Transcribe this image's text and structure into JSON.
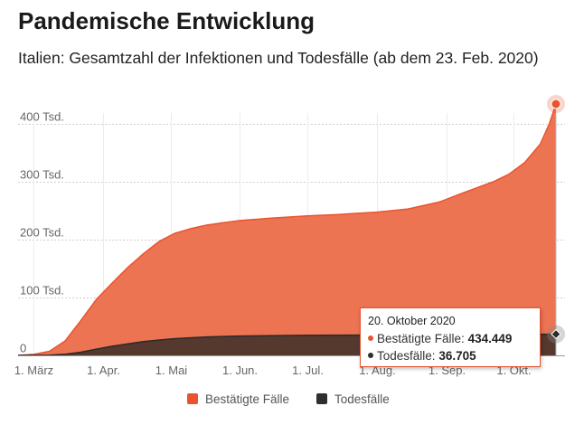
{
  "title": "Pandemische Entwicklung",
  "subtitle": "Italien: Gesamtzahl der Infektionen und Todesfälle (ab dem 23. Feb. 2020)",
  "colors": {
    "confirmed": "#e8542f",
    "confirmed_area": "#ed7453",
    "deaths": "#2f2f2f",
    "deaths_area": "#55382e",
    "grid": "#cfcfcf"
  },
  "tooltip": {
    "date": "20. Oktober 2020",
    "confirmed_label": "Bestätigte Fälle:",
    "confirmed_value": "434.449",
    "deaths_label": "Todesfälle:",
    "deaths_value": "36.705"
  },
  "legend": {
    "confirmed": "Bestätigte Fälle",
    "deaths": "Todesfälle"
  },
  "chart_data": {
    "type": "area",
    "title": "Pandemische Entwicklung",
    "subtitle": "Italien: Gesamtzahl der Infektionen und Todesfälle (ab dem 23. Feb. 2020)",
    "xlabel": "",
    "ylabel": "",
    "x_range": [
      "2020-02-23",
      "2020-10-20"
    ],
    "ylim": [
      0,
      434449
    ],
    "y_ticks": [
      {
        "value": 0,
        "label": "0"
      },
      {
        "value": 100000,
        "label": "100 Tsd."
      },
      {
        "value": 200000,
        "label": "200 Tsd."
      },
      {
        "value": 300000,
        "label": "300 Tsd."
      },
      {
        "value": 400000,
        "label": "400 Tsd."
      }
    ],
    "x_ticks": [
      {
        "date": "2020-03-01",
        "label": "1. März"
      },
      {
        "date": "2020-04-01",
        "label": "1. Apr."
      },
      {
        "date": "2020-05-01",
        "label": "1. Mai"
      },
      {
        "date": "2020-06-01",
        "label": "1. Jun."
      },
      {
        "date": "2020-07-01",
        "label": "1. Jul."
      },
      {
        "date": "2020-08-01",
        "label": "1. Aug."
      },
      {
        "date": "2020-09-01",
        "label": "1. Sep."
      },
      {
        "date": "2020-10-01",
        "label": "1. Okt."
      }
    ],
    "grid": true,
    "legend_position": "bottom",
    "series": [
      {
        "name": "Bestätigte Fälle",
        "points": [
          [
            "2020-02-23",
            0
          ],
          [
            "2020-03-01",
            1700
          ],
          [
            "2020-03-08",
            7000
          ],
          [
            "2020-03-15",
            25000
          ],
          [
            "2020-03-22",
            60000
          ],
          [
            "2020-03-29",
            97000
          ],
          [
            "2020-04-05",
            125000
          ],
          [
            "2020-04-12",
            152000
          ],
          [
            "2020-04-19",
            176000
          ],
          [
            "2020-04-26",
            197000
          ],
          [
            "2020-05-03",
            211000
          ],
          [
            "2020-05-10",
            219000
          ],
          [
            "2020-05-17",
            225000
          ],
          [
            "2020-05-24",
            229000
          ],
          [
            "2020-06-01",
            233000
          ],
          [
            "2020-06-15",
            237000
          ],
          [
            "2020-07-01",
            241000
          ],
          [
            "2020-07-15",
            243500
          ],
          [
            "2020-08-01",
            247500
          ],
          [
            "2020-08-15",
            253000
          ],
          [
            "2020-08-29",
            265000
          ],
          [
            "2020-09-08",
            280000
          ],
          [
            "2020-09-15",
            290000
          ],
          [
            "2020-09-22",
            300000
          ],
          [
            "2020-09-29",
            313000
          ],
          [
            "2020-10-06",
            333000
          ],
          [
            "2020-10-13",
            365000
          ],
          [
            "2020-10-17",
            400000
          ],
          [
            "2020-10-20",
            434449
          ]
        ]
      },
      {
        "name": "Todesfälle",
        "points": [
          [
            "2020-02-23",
            0
          ],
          [
            "2020-03-08",
            400
          ],
          [
            "2020-03-15",
            1800
          ],
          [
            "2020-03-22",
            5500
          ],
          [
            "2020-03-29",
            10800
          ],
          [
            "2020-04-05",
            15800
          ],
          [
            "2020-04-12",
            19900
          ],
          [
            "2020-04-19",
            23700
          ],
          [
            "2020-04-26",
            26600
          ],
          [
            "2020-05-03",
            28900
          ],
          [
            "2020-05-17",
            31900
          ],
          [
            "2020-06-01",
            33400
          ],
          [
            "2020-07-01",
            34800
          ],
          [
            "2020-08-01",
            35150
          ],
          [
            "2020-09-01",
            35500
          ],
          [
            "2020-10-01",
            35900
          ],
          [
            "2020-10-20",
            36705
          ]
        ]
      }
    ],
    "highlight": {
      "date": "2020-10-20",
      "confirmed": 434449,
      "deaths": 36705
    }
  }
}
